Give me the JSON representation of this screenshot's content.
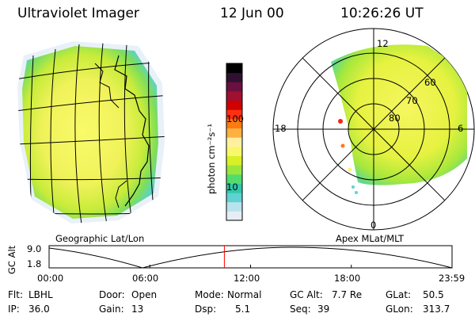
{
  "header": {
    "instrument": "Ultraviolet Imager",
    "date": "12 Jun 00",
    "time": "10:26:26 UT"
  },
  "panels": {
    "left_label": "Geographic Lat/Lon",
    "right_label": "Apex MLat/MLT"
  },
  "colorbar": {
    "unit_label": "photon cm⁻²s⁻¹",
    "tick_100": "100",
    "tick_10": "10",
    "scale": "log",
    "colors": [
      "#e6edf5",
      "#b9e3ec",
      "#5fd2d2",
      "#2ec8a8",
      "#52dc6e",
      "#9be63c",
      "#d8f026",
      "#f8f86a",
      "#fff0a0",
      "#ffb040",
      "#ff7a10",
      "#ff3010",
      "#d00000",
      "#a01030",
      "#6a1040",
      "#301030",
      "#000000"
    ]
  },
  "polar": {
    "mlt_labels": {
      "top": "12",
      "left": "18",
      "right": "6",
      "bottom": "0"
    },
    "lat_labels": [
      "60",
      "70",
      "80"
    ]
  },
  "altitude": {
    "ylabel": "GC Alt",
    "tick_high": "9.0",
    "tick_low": "1.8",
    "x_ticks": [
      "00:00",
      "06:00",
      "12:00",
      "18:00",
      "23:59"
    ],
    "current_marker_hours": 10.44,
    "marker_color": "#ff0000"
  },
  "info": {
    "filter_label": "Flt:",
    "filter_value": "LBHL",
    "door_label": "Door:",
    "door_value": "Open",
    "mode_label": "Mode:",
    "mode_value": "Normal",
    "gcalt_label": "GC Alt:",
    "gcalt_value": "7.7 Re",
    "glat_label": "GLat:",
    "glat_value": "50.5",
    "ip_label": "IP:",
    "ip_value": "36.0",
    "gain_label": "Gain:",
    "gain_value": "13",
    "dsp_label": "Dsp:",
    "dsp_value": "5.1",
    "seq_label": "Seq:",
    "seq_value": "39",
    "glon_label": "GLon:",
    "glon_value": "313.7"
  }
}
